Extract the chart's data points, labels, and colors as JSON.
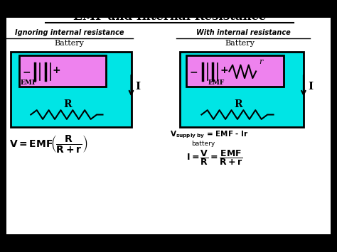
{
  "title": "EMF and Internal Resistance",
  "bg_color": "#ffffff",
  "cyan_color": "#00e5e5",
  "pink_color": "#ee82ee",
  "left_label": "Ignoring internal resistance",
  "right_label": "With internal resistance",
  "image_bg": "#000000",
  "content_bg": "#ffffff"
}
